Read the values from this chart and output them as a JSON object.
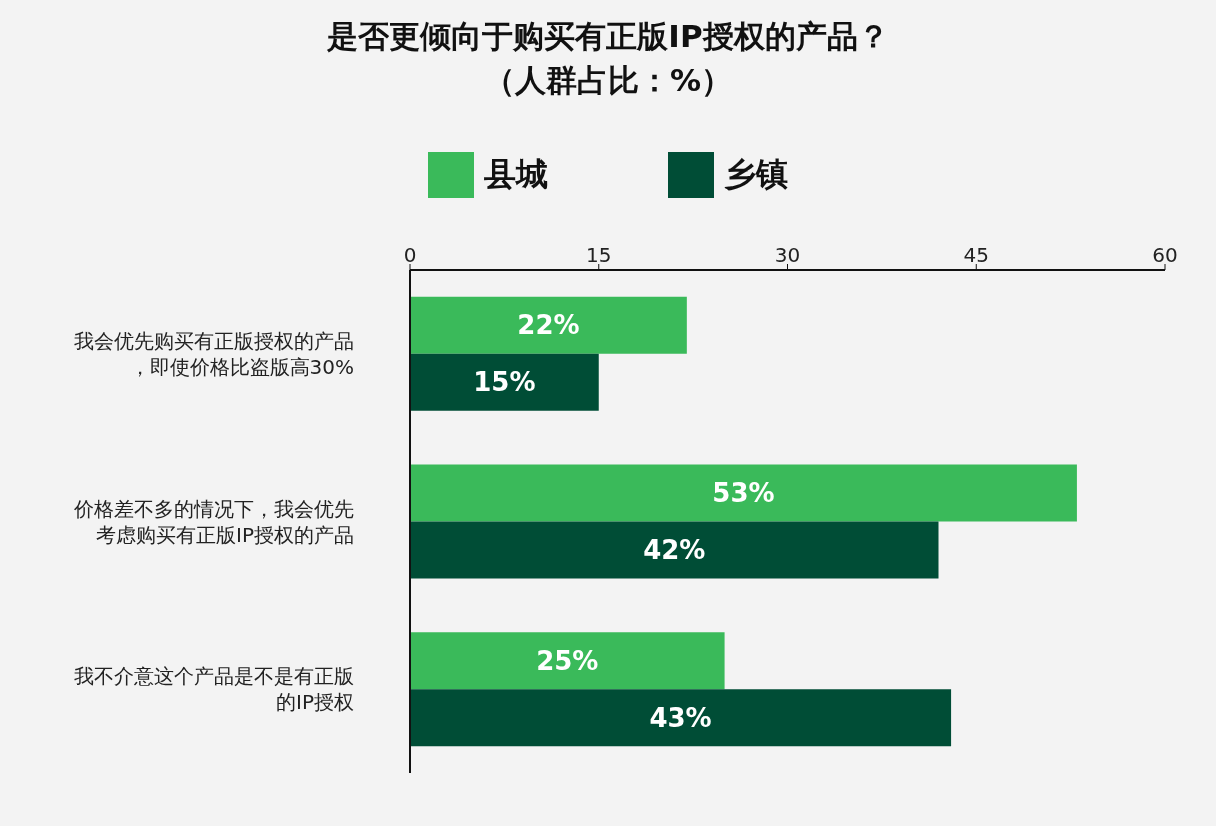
{
  "chart_data": {
    "type": "bar",
    "orientation": "horizontal",
    "title": "是否更倾向于购买有正版IP授权的产品？",
    "subtitle": "（人群占比：%）",
    "categories": [
      "我会优先购买有正版授权的产品，即使价格比盗版高30%",
      "价格差不多的情况下，我会优先考虑购买有正版IP授权的产品",
      "我不介意这个产品是不是有正版的IP授权"
    ],
    "series": [
      {
        "name": "县城",
        "color": "#3aba5a",
        "values": [
          22,
          53,
          25
        ],
        "value_labels": [
          "22%",
          "53%",
          "25%"
        ]
      },
      {
        "name": "乡镇",
        "color": "#004d36",
        "values": [
          15,
          42,
          43
        ],
        "value_labels": [
          "15%",
          "42%",
          "43%"
        ]
      }
    ],
    "xlim": [
      0,
      60
    ],
    "xticks": [
      0,
      15,
      30,
      45,
      60
    ],
    "legend": "top"
  }
}
